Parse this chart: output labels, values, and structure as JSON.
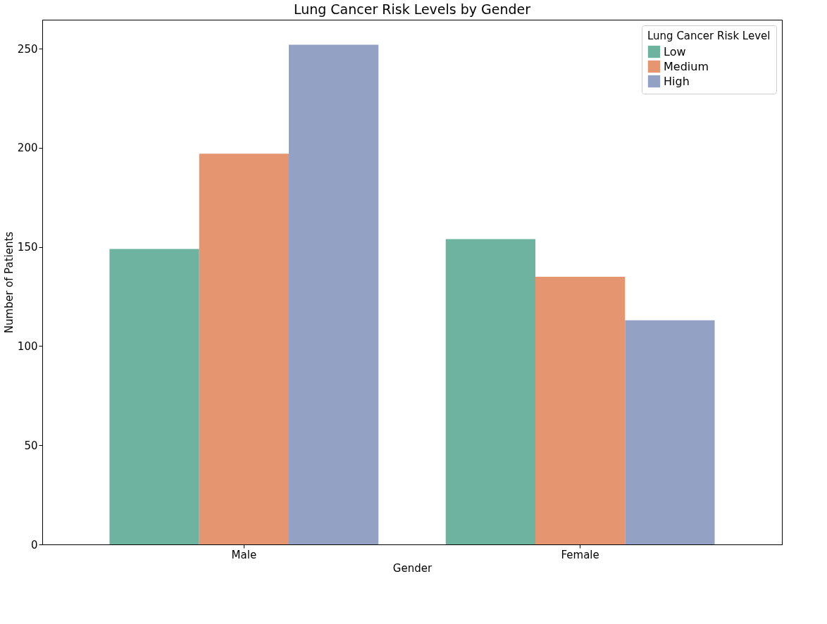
{
  "chart_data": {
    "type": "bar",
    "title": "Lung Cancer Risk Levels by Gender",
    "xlabel": "Gender",
    "ylabel": "Number of Patients",
    "legend_title": "Lung Cancer Risk Level",
    "categories": [
      "Male",
      "Female"
    ],
    "series": [
      {
        "name": "Low",
        "color": "#6db3a0",
        "values": [
          149,
          154
        ]
      },
      {
        "name": "Medium",
        "color": "#e5956f",
        "values": [
          197,
          135
        ]
      },
      {
        "name": "High",
        "color": "#93a1c4",
        "values": [
          252,
          113
        ]
      }
    ],
    "ylim": [
      0,
      264.6
    ],
    "yticks": [
      0,
      50,
      100,
      150,
      200,
      250
    ],
    "grid": false,
    "legend": "top right"
  }
}
